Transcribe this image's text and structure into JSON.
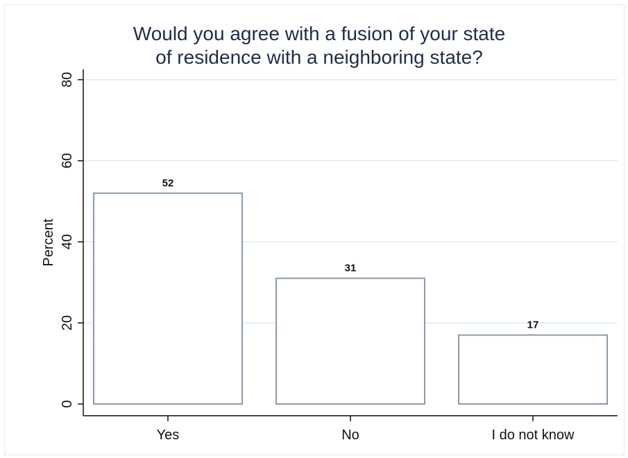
{
  "chart_data": {
    "type": "bar",
    "title": [
      "Would you agree with a fusion of your state",
      "of residence with a neighboring state?"
    ],
    "xlabel": "",
    "ylabel": "Percent",
    "categories": [
      "Yes",
      "No",
      "I do not know"
    ],
    "values": [
      52,
      31,
      17
    ],
    "data_labels": [
      "52",
      "31",
      "17"
    ],
    "ylim": [
      0,
      80
    ],
    "yticks": [
      0,
      20,
      40,
      60,
      80
    ],
    "grid": true,
    "colors": {
      "bar_fill": "#ffffff",
      "bar_stroke": "#8a9bab",
      "grid": "#e4eaf0",
      "axis": "#111111",
      "title": "#1f2d4a"
    }
  }
}
